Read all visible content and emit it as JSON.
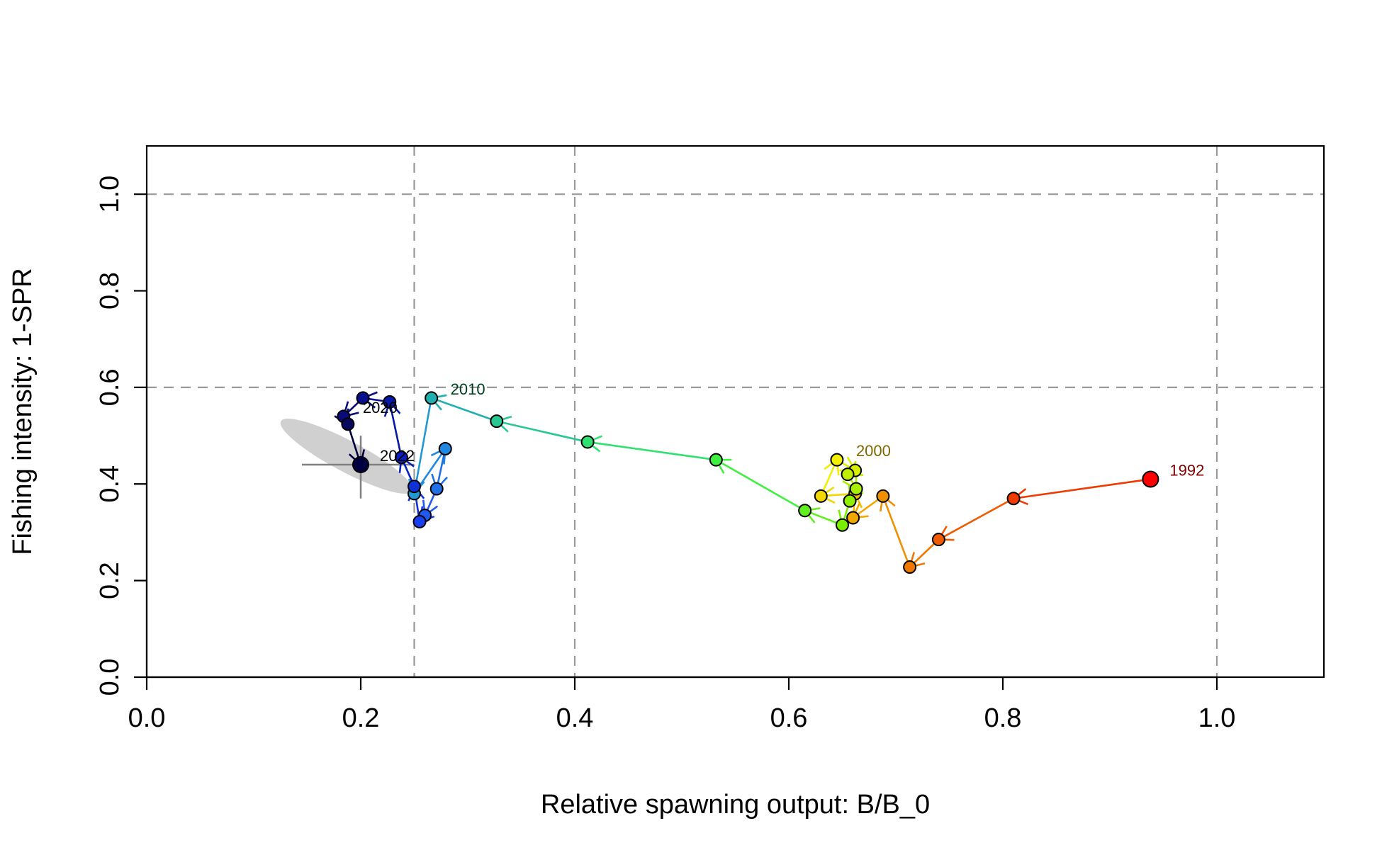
{
  "chart_data": {
    "type": "scatter",
    "xlabel": "Relative spawning output: B/B_0",
    "ylabel": "Fishing intensity: 1-SPR",
    "xlim": [
      0,
      1.1
    ],
    "ylim": [
      0,
      1.1
    ],
    "x_ticks": [
      "0.0",
      "0.2",
      "0.4",
      "0.6",
      "0.8",
      "1.0"
    ],
    "y_ticks": [
      "0.0",
      "0.2",
      "0.4",
      "0.6",
      "0.8",
      "1.0"
    ],
    "x_tick_values": [
      0,
      0.2,
      0.4,
      0.6,
      0.8,
      1.0
    ],
    "y_tick_values": [
      0,
      0.2,
      0.4,
      0.6,
      0.8,
      1.0
    ],
    "reference_lines": {
      "vertical": [
        0.25,
        0.4,
        1.0
      ],
      "horizontal": [
        0.6,
        1.0
      ],
      "color": "#999999"
    },
    "trajectory": [
      {
        "year": 1992,
        "x": 0.938,
        "y": 0.41,
        "color": "#ff0000"
      },
      {
        "year": 1993,
        "x": 0.81,
        "y": 0.37,
        "color": "#f03a00"
      },
      {
        "year": 1994,
        "x": 0.74,
        "y": 0.285,
        "color": "#f05a00"
      },
      {
        "year": 1995,
        "x": 0.713,
        "y": 0.228,
        "color": "#f07800"
      },
      {
        "year": 1996,
        "x": 0.688,
        "y": 0.375,
        "color": "#f09000"
      },
      {
        "year": 1997,
        "x": 0.66,
        "y": 0.33,
        "color": "#f0a800"
      },
      {
        "year": 1998,
        "x": 0.662,
        "y": 0.38,
        "color": "#f0c000"
      },
      {
        "year": 1999,
        "x": 0.63,
        "y": 0.375,
        "color": "#f0d800"
      },
      {
        "year": 2000,
        "x": 0.645,
        "y": 0.45,
        "color": "#f0f000"
      },
      {
        "year": 2001,
        "x": 0.662,
        "y": 0.428,
        "color": "#d8f000"
      },
      {
        "year": 2002,
        "x": 0.655,
        "y": 0.42,
        "color": "#c0f000"
      },
      {
        "year": 2003,
        "x": 0.663,
        "y": 0.39,
        "color": "#a8f000"
      },
      {
        "year": 2004,
        "x": 0.657,
        "y": 0.365,
        "color": "#90f000"
      },
      {
        "year": 2005,
        "x": 0.65,
        "y": 0.315,
        "color": "#78f000"
      },
      {
        "year": 2006,
        "x": 0.615,
        "y": 0.345,
        "color": "#60f020"
      },
      {
        "year": 2007,
        "x": 0.532,
        "y": 0.45,
        "color": "#40f040"
      },
      {
        "year": 2008,
        "x": 0.412,
        "y": 0.487,
        "color": "#30e070"
      },
      {
        "year": 2009,
        "x": 0.327,
        "y": 0.53,
        "color": "#28c890"
      },
      {
        "year": 2010,
        "x": 0.266,
        "y": 0.578,
        "color": "#20b0b0"
      },
      {
        "year": 2011,
        "x": 0.25,
        "y": 0.38,
        "color": "#2098d0"
      },
      {
        "year": 2012,
        "x": 0.279,
        "y": 0.473,
        "color": "#2088e0"
      },
      {
        "year": 2013,
        "x": 0.271,
        "y": 0.39,
        "color": "#2070e8"
      },
      {
        "year": 2014,
        "x": 0.26,
        "y": 0.335,
        "color": "#2058f0"
      },
      {
        "year": 2015,
        "x": 0.255,
        "y": 0.322,
        "color": "#1840f0"
      },
      {
        "year": 2016,
        "x": 0.25,
        "y": 0.395,
        "color": "#1030d8"
      },
      {
        "year": 2017,
        "x": 0.238,
        "y": 0.455,
        "color": "#0820c0"
      },
      {
        "year": 2018,
        "x": 0.227,
        "y": 0.57,
        "color": "#0818a8"
      },
      {
        "year": 2019,
        "x": 0.202,
        "y": 0.578,
        "color": "#081090"
      },
      {
        "year": 2020,
        "x": 0.184,
        "y": 0.54,
        "color": "#080c78"
      },
      {
        "year": 2021,
        "x": 0.188,
        "y": 0.524,
        "color": "#080860"
      },
      {
        "year": 2022,
        "x": 0.2,
        "y": 0.44,
        "color": "#000040"
      }
    ],
    "year_labels": [
      {
        "text": "1992",
        "x": 0.938,
        "y": 0.41,
        "color": "#800000"
      },
      {
        "text": "2000",
        "x": 0.645,
        "y": 0.45,
        "color": "#806800"
      },
      {
        "text": "2010",
        "x": 0.266,
        "y": 0.578,
        "color": "#004020"
      },
      {
        "text": "2020",
        "x": 0.184,
        "y": 0.54,
        "color": "#000000"
      },
      {
        "text": "2022",
        "x": 0.2,
        "y": 0.44,
        "color": "#000000"
      }
    ],
    "uncertainty": {
      "center_x": 0.2,
      "center_y": 0.44,
      "x_interval": [
        0.145,
        0.25
      ],
      "y_interval": [
        0.37,
        0.5
      ],
      "ellipse_color": "#d0d0d0",
      "crosshair_color": "#808080"
    }
  }
}
